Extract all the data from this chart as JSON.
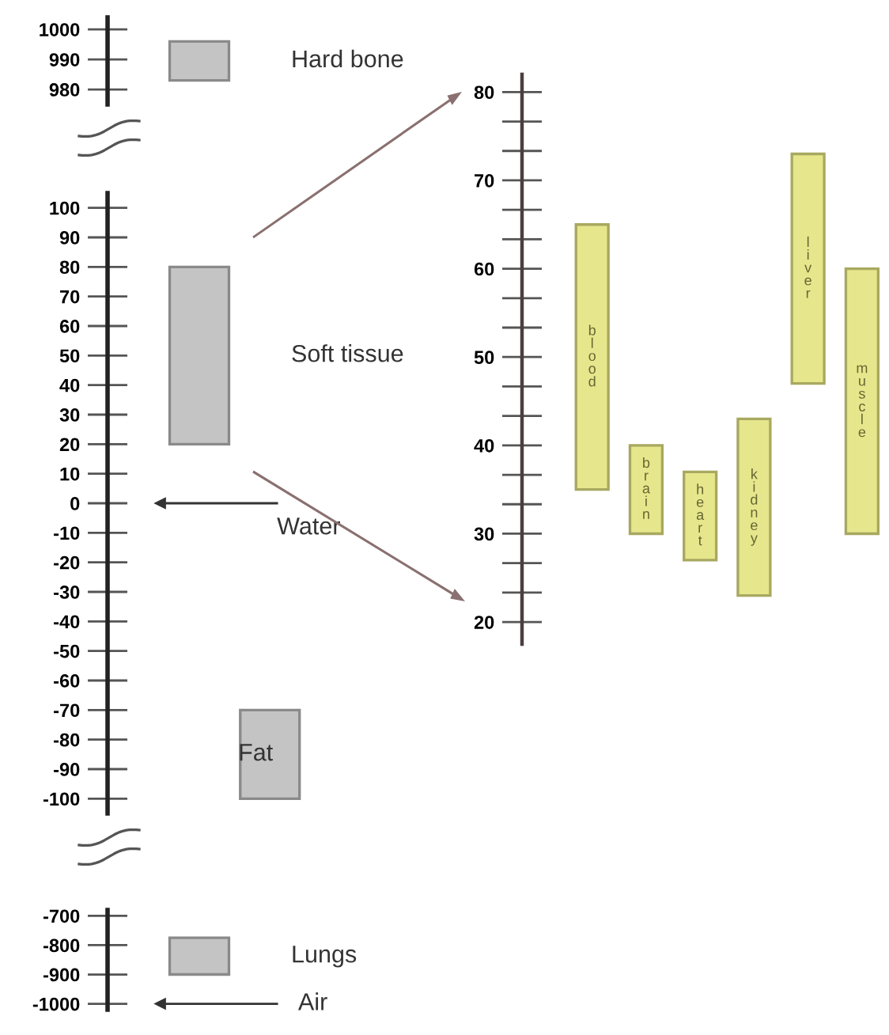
{
  "chart_data": [
    {
      "type": "bar",
      "categories": [
        null
      ],
      "base": [
        983
      ],
      "values": [
        13
      ],
      "colors": [
        "#c4c4c4"
      ],
      "ylim": [
        975,
        1004
      ],
      "yticks": [
        980,
        990,
        1000
      ],
      "tick_labels": "y",
      "grid": false,
      "annotations": [
        "Hard bone"
      ]
    },
    {
      "type": "bar",
      "categories": [
        null,
        null
      ],
      "base": [
        20,
        -100
      ],
      "values": [
        60,
        30
      ],
      "colors": [
        "#c4c4c4",
        "#c4c4c4"
      ],
      "ylim": [
        -105,
        105
      ],
      "yticks": [
        -100,
        -90,
        -80,
        -70,
        -60,
        -50,
        -40,
        -30,
        -20,
        -10,
        0,
        10,
        20,
        30,
        40,
        50,
        60,
        70,
        80,
        90,
        100
      ],
      "tick_labels": "y",
      "grid": false,
      "annotations": [
        "Soft tissue",
        "Fat"
      ],
      "ref_lines": [
        {
          "axis": "y",
          "value": 0,
          "label": "Water"
        }
      ]
    },
    {
      "type": "bar",
      "categories": [
        null
      ],
      "base": [
        -900
      ],
      "values": [
        125
      ],
      "colors": [
        "#c4c4c4"
      ],
      "ylim": [
        -1020,
        -680
      ],
      "yticks": [
        -1000,
        -900,
        -800,
        -700
      ],
      "tick_labels": "y",
      "grid": false,
      "annotations": [
        "Lungs"
      ],
      "ref_lines": [
        {
          "axis": "y",
          "value": -1000,
          "label": "Air"
        }
      ]
    },
    {
      "type": "bar",
      "categories": [
        "blood",
        "brain",
        "heart",
        "kidney",
        "liver",
        "muscle"
      ],
      "base": [
        35,
        30,
        27,
        23,
        47,
        30
      ],
      "values": [
        30,
        10,
        10,
        20,
        26,
        30
      ],
      "color": "#e6e68c",
      "ylim": [
        17.5,
        82
      ],
      "yticks": [
        20,
        30,
        40,
        50,
        60,
        70,
        80
      ],
      "tick_labels": "y",
      "grid": false
    }
  ]
}
